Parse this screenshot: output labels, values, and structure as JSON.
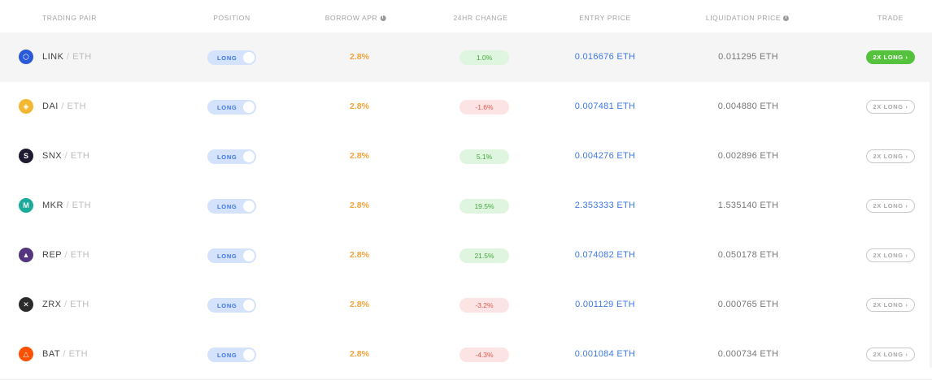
{
  "header": {
    "trading_pair": "TRADING PAIR",
    "position": "POSITION",
    "borrow_apr": "BORROW APR",
    "change_24h": "24HR CHANGE",
    "entry_price": "ENTRY PRICE",
    "liquidation_price": "LIQUIDATION PRICE",
    "trade": "TRADE",
    "info_glyph": "i"
  },
  "rows": [
    {
      "base": "LINK",
      "sep": " / ",
      "quote": "ETH",
      "position": "LONG",
      "apr": "2.8%",
      "change": "1.0%",
      "change_dir": "pos",
      "entry": "0.016676 ETH",
      "liq": "0.011295 ETH",
      "trade": "2X LONG",
      "trade_active": true,
      "coin_icon": "chainlink-icon",
      "coin_color": "#2a5ada",
      "coin_glyph": "⬡"
    },
    {
      "base": "DAI",
      "sep": " / ",
      "quote": "ETH",
      "position": "LONG",
      "apr": "2.8%",
      "change": "-1.6%",
      "change_dir": "neg",
      "entry": "0.007481 ETH",
      "liq": "0.004880 ETH",
      "trade": "2X LONG",
      "trade_active": false,
      "coin_icon": "dai-icon",
      "coin_color": "#f4b731",
      "coin_glyph": "◈"
    },
    {
      "base": "SNX",
      "sep": " / ",
      "quote": "ETH",
      "position": "LONG",
      "apr": "2.8%",
      "change": "5.1%",
      "change_dir": "pos",
      "entry": "0.004276 ETH",
      "liq": "0.002896 ETH",
      "trade": "2X LONG",
      "trade_active": false,
      "coin_icon": "synthetix-icon",
      "coin_color": "#1e1a31",
      "coin_glyph": "S"
    },
    {
      "base": "MKR",
      "sep": " / ",
      "quote": "ETH",
      "position": "LONG",
      "apr": "2.8%",
      "change": "19.5%",
      "change_dir": "pos",
      "entry": "2.353333 ETH",
      "liq": "1.535140 ETH",
      "trade": "2X LONG",
      "trade_active": false,
      "coin_icon": "maker-icon",
      "coin_color": "#1aab9b",
      "coin_glyph": "M"
    },
    {
      "base": "REP",
      "sep": " / ",
      "quote": "ETH",
      "position": "LONG",
      "apr": "2.8%",
      "change": "21.5%",
      "change_dir": "pos",
      "entry": "0.074082 ETH",
      "liq": "0.050178 ETH",
      "trade": "2X LONG",
      "trade_active": false,
      "coin_icon": "augur-icon",
      "coin_color": "#553580",
      "coin_glyph": "▲"
    },
    {
      "base": "ZRX",
      "sep": " / ",
      "quote": "ETH",
      "position": "LONG",
      "apr": "2.8%",
      "change": "-3.2%",
      "change_dir": "neg",
      "entry": "0.001129 ETH",
      "liq": "0.000765 ETH",
      "trade": "2X LONG",
      "trade_active": false,
      "coin_icon": "0x-icon",
      "coin_color": "#2b2b2b",
      "coin_glyph": "✕"
    },
    {
      "base": "BAT",
      "sep": " / ",
      "quote": "ETH",
      "position": "LONG",
      "apr": "2.8%",
      "change": "-4.3%",
      "change_dir": "neg",
      "entry": "0.001084 ETH",
      "liq": "0.000734 ETH",
      "trade": "2X LONG",
      "trade_active": false,
      "coin_icon": "bat-icon",
      "coin_color": "#ff5000",
      "coin_glyph": "△"
    }
  ],
  "trade_arrow": "›",
  "colors": {
    "accent_blue": "#3f78e6",
    "apr_orange": "#f2a23a",
    "positive_green": "#3faa3b",
    "negative_red": "#e05a50",
    "trade_green": "#55c23e"
  }
}
